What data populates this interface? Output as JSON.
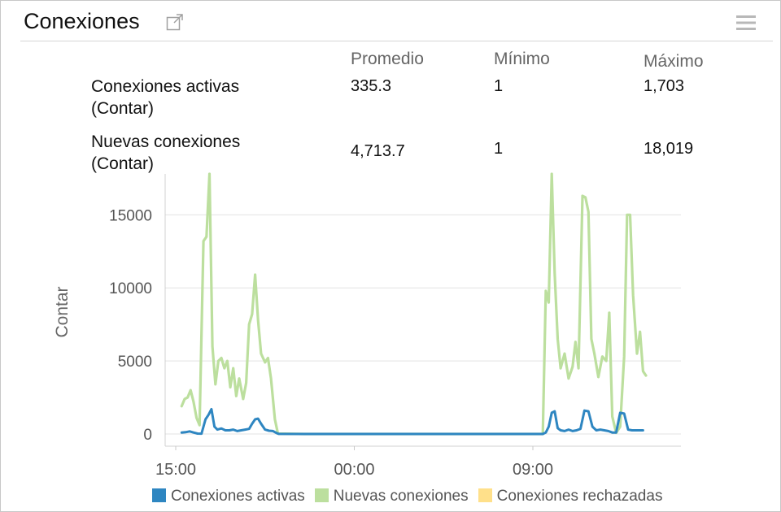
{
  "panel": {
    "title": "Conexiones",
    "icons": {
      "popout": "external-link-icon",
      "menu": "hamburger-menu-icon"
    }
  },
  "stats": {
    "headers": {
      "avg": "Promedio",
      "min": "Mínimo",
      "max": "Máximo"
    },
    "rows": [
      {
        "label_line1": "Conexiones activas",
        "label_line2": "(Contar)",
        "avg": "335.3",
        "min": "1",
        "max": "1,703"
      },
      {
        "label_line1": "Nuevas conexiones",
        "label_line2": "(Contar)",
        "avg": "4,713.7",
        "min": "1",
        "max": "18,019"
      }
    ]
  },
  "chart_data": {
    "type": "line",
    "title": "",
    "xlabel": "",
    "ylabel": "Contar",
    "ylim": [
      0,
      17800
    ],
    "x_unit": "hours since 15:00 (first x tick)",
    "xlim": [
      -0.6,
      20.1
    ],
    "x_ticks": [
      {
        "x": 0,
        "label": "15:00"
      },
      {
        "x": 9,
        "label": "00:00"
      },
      {
        "x": 18,
        "label": "09:00"
      }
    ],
    "y_ticks": [
      {
        "y": 0,
        "label": "0"
      },
      {
        "y": 5000,
        "label": "5000"
      },
      {
        "y": 10000,
        "label": "10000"
      },
      {
        "y": 15000,
        "label": "15000"
      }
    ],
    "grid": true,
    "legend_position": "bottom",
    "series": [
      {
        "name": "Conexiones activas",
        "color": "#2e86c1",
        "points": [
          [
            0.3,
            100
          ],
          [
            0.5,
            120
          ],
          [
            0.7,
            180
          ],
          [
            0.9,
            100
          ],
          [
            1.1,
            30
          ],
          [
            1.3,
            20
          ],
          [
            1.5,
            1000
          ],
          [
            1.65,
            1300
          ],
          [
            1.8,
            1700
          ],
          [
            1.95,
            500
          ],
          [
            2.1,
            300
          ],
          [
            2.3,
            380
          ],
          [
            2.5,
            250
          ],
          [
            2.7,
            250
          ],
          [
            2.9,
            300
          ],
          [
            3.1,
            200
          ],
          [
            3.3,
            250
          ],
          [
            3.5,
            300
          ],
          [
            3.7,
            350
          ],
          [
            3.85,
            700
          ],
          [
            4.0,
            1000
          ],
          [
            4.15,
            1050
          ],
          [
            4.3,
            700
          ],
          [
            4.5,
            300
          ],
          [
            4.7,
            220
          ],
          [
            4.9,
            200
          ],
          [
            5.1,
            50
          ],
          [
            5.2,
            5
          ],
          [
            6.5,
            0
          ],
          [
            8.0,
            0
          ],
          [
            10.0,
            0
          ],
          [
            12.0,
            0
          ],
          [
            14.0,
            0
          ],
          [
            16.0,
            0
          ],
          [
            18.5,
            0
          ],
          [
            18.65,
            100
          ],
          [
            18.8,
            500
          ],
          [
            18.95,
            1450
          ],
          [
            19.1,
            1550
          ],
          [
            19.25,
            400
          ],
          [
            19.4,
            250
          ],
          [
            19.6,
            200
          ],
          [
            19.8,
            300
          ],
          [
            20.0,
            200
          ],
          [
            20.2,
            250
          ],
          [
            20.4,
            350
          ],
          [
            20.6,
            1600
          ],
          [
            20.8,
            1550
          ],
          [
            21.0,
            500
          ],
          [
            21.2,
            250
          ],
          [
            21.4,
            300
          ],
          [
            21.6,
            250
          ],
          [
            21.8,
            200
          ],
          [
            22.0,
            100
          ],
          [
            22.2,
            100
          ],
          [
            22.4,
            1450
          ],
          [
            22.6,
            1400
          ],
          [
            22.8,
            300
          ],
          [
            23.0,
            250
          ],
          [
            23.2,
            250
          ],
          [
            23.4,
            250
          ],
          [
            23.55,
            250
          ]
        ]
      },
      {
        "name": "Nuevas conexiones",
        "color": "#bcdf9e",
        "points": [
          [
            0.3,
            1900
          ],
          [
            0.45,
            2400
          ],
          [
            0.6,
            2500
          ],
          [
            0.75,
            3000
          ],
          [
            0.9,
            2200
          ],
          [
            1.05,
            1100
          ],
          [
            1.2,
            600
          ],
          [
            1.4,
            13200
          ],
          [
            1.55,
            13500
          ],
          [
            1.7,
            17800
          ],
          [
            1.85,
            6000
          ],
          [
            2.0,
            3400
          ],
          [
            2.15,
            5000
          ],
          [
            2.3,
            5200
          ],
          [
            2.45,
            4500
          ],
          [
            2.6,
            5000
          ],
          [
            2.75,
            3200
          ],
          [
            2.9,
            4500
          ],
          [
            3.05,
            2600
          ],
          [
            3.2,
            3800
          ],
          [
            3.4,
            2400
          ],
          [
            3.55,
            3500
          ],
          [
            3.7,
            7500
          ],
          [
            3.85,
            8200
          ],
          [
            4.0,
            10900
          ],
          [
            4.15,
            7800
          ],
          [
            4.3,
            5500
          ],
          [
            4.5,
            4900
          ],
          [
            4.65,
            5200
          ],
          [
            4.8,
            3800
          ],
          [
            5.0,
            1000
          ],
          [
            5.15,
            30
          ],
          [
            6.5,
            0
          ],
          [
            8.0,
            0
          ],
          [
            10.0,
            0
          ],
          [
            12.0,
            0
          ],
          [
            14.0,
            0
          ],
          [
            16.0,
            0
          ],
          [
            18.5,
            0
          ],
          [
            18.65,
            9800
          ],
          [
            18.8,
            9000
          ],
          [
            18.95,
            17800
          ],
          [
            19.1,
            11000
          ],
          [
            19.25,
            6500
          ],
          [
            19.4,
            4500
          ],
          [
            19.6,
            5500
          ],
          [
            19.8,
            3800
          ],
          [
            20.0,
            4600
          ],
          [
            20.15,
            6300
          ],
          [
            20.3,
            4500
          ],
          [
            20.5,
            16300
          ],
          [
            20.65,
            16200
          ],
          [
            20.8,
            15200
          ],
          [
            20.95,
            6500
          ],
          [
            21.1,
            5500
          ],
          [
            21.3,
            3900
          ],
          [
            21.5,
            5300
          ],
          [
            21.7,
            5000
          ],
          [
            21.85,
            8300
          ],
          [
            22.0,
            1200
          ],
          [
            22.2,
            80
          ],
          [
            22.4,
            500
          ],
          [
            22.6,
            5300
          ],
          [
            22.75,
            15000
          ],
          [
            22.9,
            15000
          ],
          [
            23.05,
            9500
          ],
          [
            23.25,
            5500
          ],
          [
            23.4,
            7000
          ],
          [
            23.55,
            4300
          ],
          [
            23.7,
            4000
          ]
        ]
      },
      {
        "name": "Conexiones rechazadas",
        "color": "#ffe08a",
        "points": []
      }
    ]
  }
}
